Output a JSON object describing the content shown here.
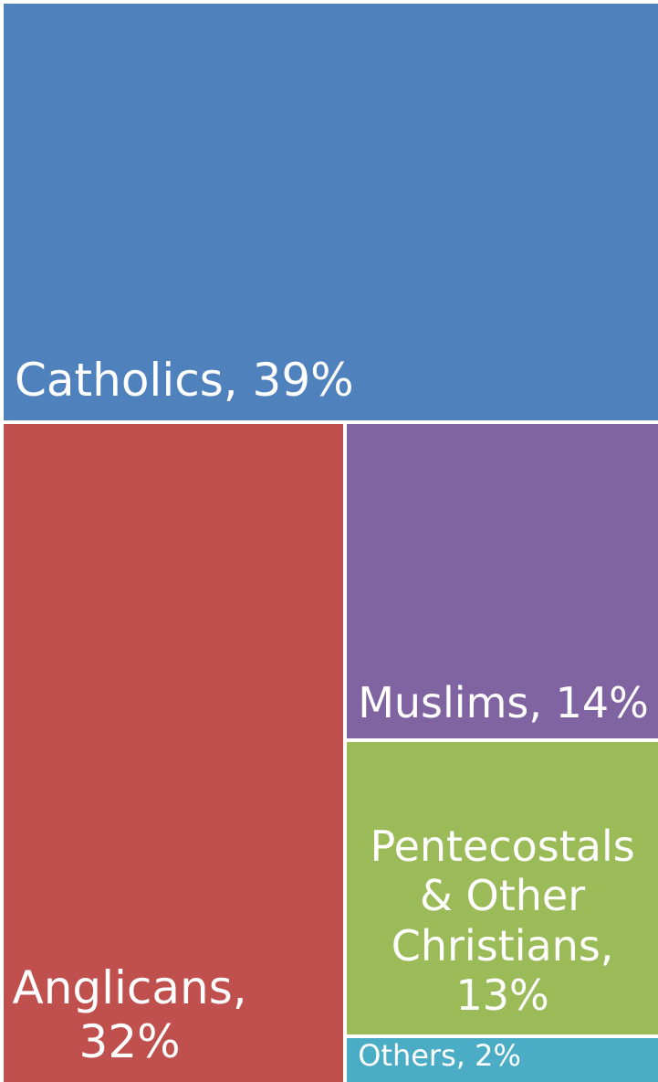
{
  "chart_data": {
    "type": "treemap",
    "title": "",
    "items": [
      {
        "name": "Catholics",
        "value": 39,
        "label": "Catholics, 39%",
        "color": "#4F81BD"
      },
      {
        "name": "Anglicans",
        "value": 32,
        "label": "Anglicans,\n32%",
        "color": "#C0504D"
      },
      {
        "name": "Muslims",
        "value": 14,
        "label": "Muslims, 14%",
        "color": "#8064A2"
      },
      {
        "name": "Pentecostals & Other Christians",
        "value": 13,
        "label": "Pentecostals\n& Other\nChristians,\n13%",
        "color": "#9BBB59"
      },
      {
        "name": "Others",
        "value": 2,
        "label": "Others, 2%",
        "color": "#4BACC6"
      }
    ]
  }
}
